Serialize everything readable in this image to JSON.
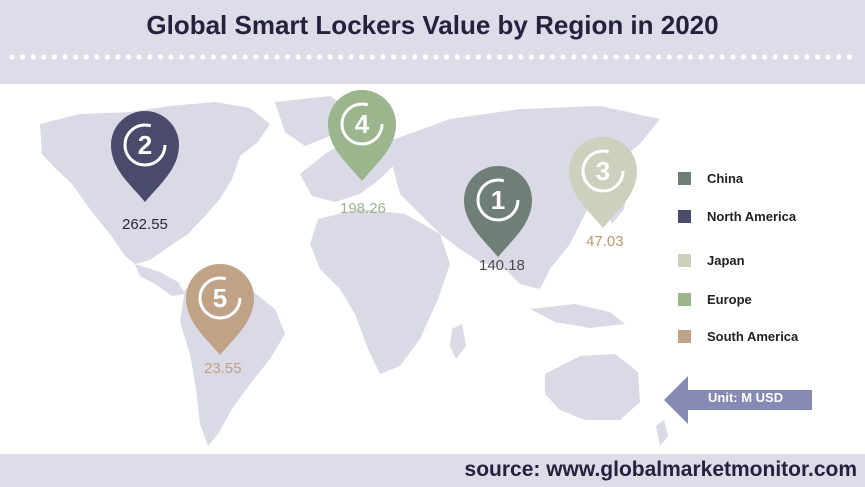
{
  "title": "Global Smart Lockers Value by Region in 2020",
  "source": "source: www.globalmarketmonitor.com",
  "unit": "Unit: M USD",
  "chart_data": {
    "type": "map",
    "title": "Global Smart Lockers Value by Region in 2020",
    "unit": "M USD",
    "regions": [
      {
        "rank": 1,
        "name": "China",
        "value": 140.18,
        "color": "#6f7f78",
        "value_color": "#4a4a4a"
      },
      {
        "rank": 2,
        "name": "North America",
        "value": 262.55,
        "color": "#4a4a6a",
        "value_color": "#2a2a3a"
      },
      {
        "rank": 3,
        "name": "Japan",
        "value": 47.03,
        "color": "#cdd0bd",
        "value_color": "#c59670"
      },
      {
        "rank": 4,
        "name": "Europe",
        "value": 198.26,
        "color": "#9bb58c",
        "value_color": "#9bb58c"
      },
      {
        "rank": 5,
        "name": "South America",
        "value": 23.55,
        "color": "#c0a287",
        "value_color": "#c0a287"
      }
    ],
    "legend_order": [
      "China",
      "North America",
      "Japan",
      "Europe",
      "South America"
    ],
    "legend_placement": "right"
  }
}
